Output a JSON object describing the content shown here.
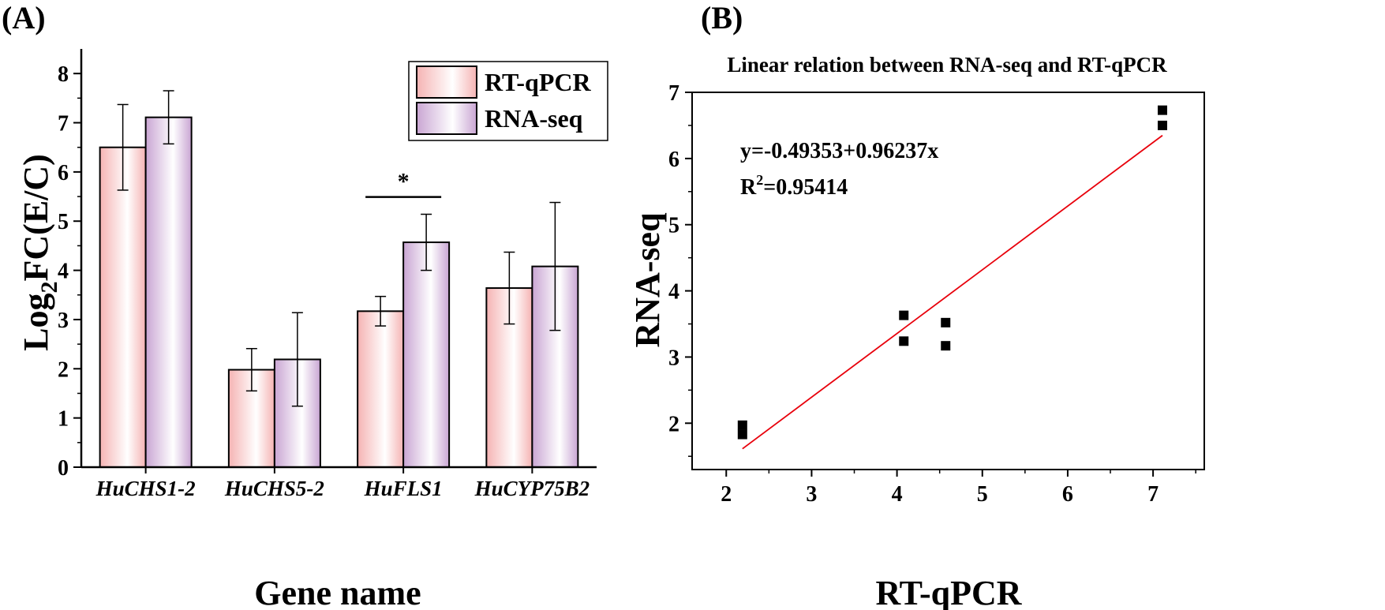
{
  "panel_labels": {
    "a": "(A)",
    "b": "(B)"
  },
  "chart_data": [
    {
      "type": "bar",
      "panel": "(A)",
      "xlabel": "Gene name",
      "ylabel_base": "Log",
      "ylabel_sub": "2",
      "ylabel_rest": "FC(E/C)",
      "ylim": [
        0,
        8.5
      ],
      "yticks": [
        "0",
        "1",
        "2",
        "3",
        "4",
        "5",
        "6",
        "7",
        "8"
      ],
      "categories": [
        "HuCHS1-2",
        "HuCHS5-2",
        "HuFLS1",
        "HuCYP75B2"
      ],
      "series": [
        {
          "name": "RT-qPCR",
          "values": [
            6.5,
            1.98,
            3.17,
            3.64
          ],
          "errors": [
            0.87,
            0.43,
            0.3,
            0.73
          ],
          "color": "#f5b3b3"
        },
        {
          "name": "RNA-seq",
          "values": [
            7.11,
            2.19,
            4.57,
            4.08
          ],
          "errors": [
            0.54,
            0.95,
            0.57,
            1.3
          ],
          "color": "#c9a5d3"
        }
      ],
      "legend_position": "top-right",
      "annotations": [
        {
          "text": "*",
          "category": "HuFLS1"
        }
      ]
    },
    {
      "type": "scatter",
      "panel": "(B)",
      "title": "Linear relation between RNA-seq and RT-qPCR",
      "xlabel": "RT-qPCR",
      "ylabel": "RNA-seq",
      "xlim": [
        1.6,
        7.6
      ],
      "ylim": [
        1.3,
        7.0
      ],
      "xticks": [
        "2",
        "3",
        "4",
        "5",
        "6",
        "7"
      ],
      "yticks": [
        "2",
        "3",
        "4",
        "5",
        "6",
        "7"
      ],
      "points": [
        {
          "x": 2.19,
          "y": 1.97
        },
        {
          "x": 2.19,
          "y": 1.83
        },
        {
          "x": 4.08,
          "y": 3.63
        },
        {
          "x": 4.08,
          "y": 3.24
        },
        {
          "x": 4.57,
          "y": 3.52
        },
        {
          "x": 4.57,
          "y": 3.17
        },
        {
          "x": 7.11,
          "y": 6.73
        },
        {
          "x": 7.11,
          "y": 6.5
        }
      ],
      "fit": {
        "intercept": -0.49353,
        "slope": 0.96237,
        "x_range": [
          2.19,
          7.11
        ],
        "color": "#e8000b"
      },
      "equation": "y=-0.49353+0.96237x",
      "r2_prefix": "R",
      "r2_exp": "2",
      "r2_value": "=0.95414"
    }
  ]
}
